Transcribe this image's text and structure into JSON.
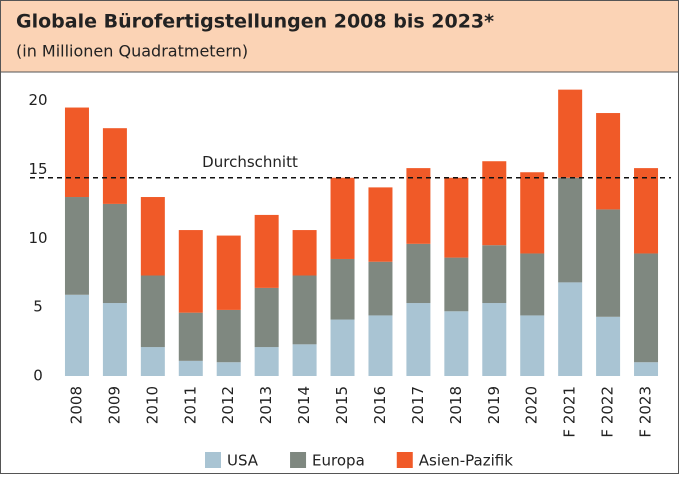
{
  "chart_data": {
    "type": "stacked_bar",
    "title": "Globale Bürofertigstellungen 2008 bis 2023*",
    "subtitle": "(in Millionen Quadratmetern)",
    "categories": [
      "2008",
      "2009",
      "2010",
      "2011",
      "2012",
      "2013",
      "2014",
      "2015",
      "2016",
      "2017",
      "2018",
      "2019",
      "2020",
      "F 2021",
      "F 2022",
      "F 2023"
    ],
    "series": [
      {
        "name": "USA",
        "color": "#a9c4d3",
        "values": [
          5.9,
          5.3,
          2.1,
          1.1,
          1.0,
          2.1,
          2.3,
          4.1,
          4.4,
          5.3,
          4.7,
          5.3,
          4.4,
          6.8,
          4.3,
          1.0
        ]
      },
      {
        "name": "Europa",
        "color": "#7f8880",
        "values": [
          7.1,
          7.2,
          5.2,
          3.5,
          3.8,
          4.3,
          5.0,
          4.4,
          3.9,
          4.3,
          3.9,
          4.2,
          4.5,
          7.6,
          7.8,
          7.9
        ]
      },
      {
        "name": "Asien-Pazifik",
        "color": "#f05a28",
        "values": [
          6.5,
          5.5,
          5.7,
          6.0,
          5.4,
          5.3,
          3.3,
          5.9,
          5.4,
          5.5,
          5.8,
          6.1,
          5.9,
          6.4,
          7.0,
          6.2
        ]
      }
    ],
    "reference_line": {
      "label": "Durchschnitt",
      "value": 14.4
    },
    "ylim": [
      0,
      21.5
    ],
    "yticks": [
      0,
      5,
      10,
      15,
      20
    ],
    "legend": "bottom"
  }
}
